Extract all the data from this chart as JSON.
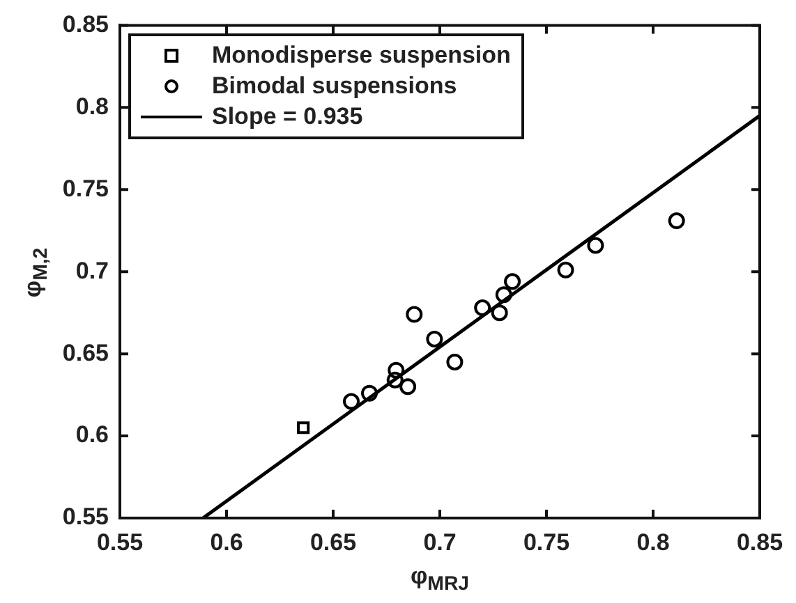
{
  "chart_data": {
    "type": "scatter",
    "xlabel": "φ$_{MRJ}$",
    "ylabel": "φ$_{M,2}$",
    "series": [
      {
        "name": "Monodisperse suspension",
        "color": "#000000",
        "marker": "square",
        "x": [
          0.636
        ],
        "values": [
          0.605
        ]
      },
      {
        "name": "Bimodal suspensions",
        "color": "#000000",
        "marker": "circle",
        "x": [
          0.6585,
          0.667,
          0.6795,
          0.679,
          0.685,
          0.688,
          0.6975,
          0.707,
          0.72,
          0.728,
          0.73,
          0.734,
          0.759,
          0.773,
          0.811
        ],
        "values": [
          0.621,
          0.626,
          0.64,
          0.634,
          0.63,
          0.674,
          0.659,
          0.645,
          0.678,
          0.675,
          0.686,
          0.694,
          0.701,
          0.716,
          0.731
        ]
      },
      {
        "name": "Slope = 0.935",
        "type": "line",
        "color": "#000000",
        "marker": "none",
        "line_style": "solid",
        "x": [
          0.589,
          0.85
        ],
        "values": [
          0.55,
          0.795
        ]
      }
    ],
    "xlim": [
      0.55,
      0.85
    ],
    "xticks": [
      0.55,
      0.6,
      0.65,
      0.7,
      0.75,
      0.8,
      0.85
    ],
    "ylim": [
      0.55,
      0.85
    ],
    "yticks": [
      0.55,
      0.6,
      0.65,
      0.7,
      0.75,
      0.8,
      0.85
    ],
    "grid": false,
    "legend": "top left"
  }
}
